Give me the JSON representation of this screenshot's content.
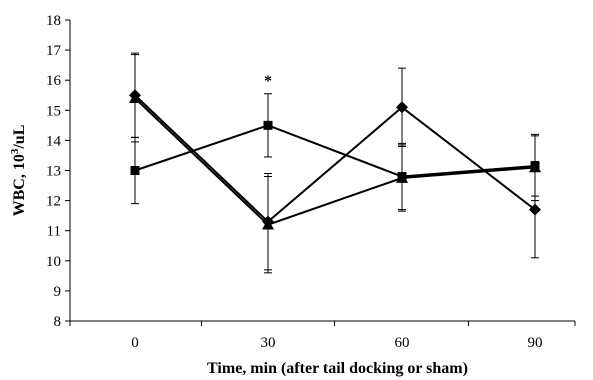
{
  "chart_data": {
    "type": "line",
    "title": "",
    "xlabel": "Time, min (after tail docking or sham)",
    "ylabel_prefix": "WBC, 10",
    "ylabel_superscript": "3",
    "ylabel_suffix": "/uL",
    "x": [
      0,
      30,
      60,
      90
    ],
    "x_tick_labels": [
      "0",
      "30",
      "60",
      "90"
    ],
    "ylim": [
      8,
      18
    ],
    "y_tick_labels": [
      "8",
      "9",
      "10",
      "11",
      "12",
      "13",
      "14",
      "15",
      "16",
      "17",
      "18"
    ],
    "grid": false,
    "legend": "none",
    "series": [
      {
        "marker": "diamond",
        "color": "#000000",
        "values": [
          15.5,
          11.3,
          15.1,
          11.7
        ],
        "errors": [
          1.4,
          1.6,
          1.3,
          1.6
        ]
      },
      {
        "marker": "square",
        "color": "#000000",
        "values": [
          13.0,
          14.5,
          12.8,
          13.15
        ],
        "errors": [
          1.1,
          1.05,
          1.1,
          1.0
        ]
      },
      {
        "marker": "triangle",
        "color": "#000000",
        "values": [
          15.4,
          11.2,
          12.75,
          13.1
        ],
        "errors": [
          1.45,
          1.6,
          1.1,
          1.1
        ]
      }
    ],
    "annotations": [
      {
        "text": "*",
        "x": 30,
        "y": 16.0
      }
    ]
  }
}
